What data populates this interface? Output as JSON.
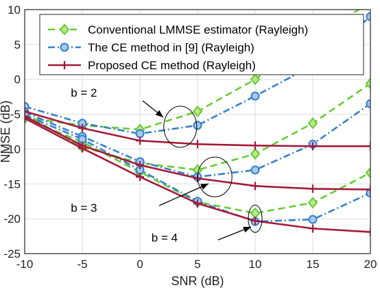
{
  "chart_data": {
    "type": "line",
    "title": "",
    "xlabel": "SNR (dB)",
    "ylabel": "NMSE (dB)",
    "xlim": [
      -10,
      20
    ],
    "ylim": [
      -25,
      10
    ],
    "xticks": [
      -10,
      -5,
      0,
      5,
      10,
      15,
      20
    ],
    "yticks": [
      -25,
      -20,
      -15,
      -10,
      -5,
      0,
      5,
      10
    ],
    "grid": true,
    "legend_position": "top",
    "x": [
      -10,
      -5,
      0,
      5,
      10,
      15,
      20
    ],
    "series": [
      {
        "name": "Conventional LMMSE estimator (Rayleigh)",
        "color": "#66cc33",
        "line_style": "dashed",
        "marker": "diamond",
        "groups": [
          {
            "label": "b = 2",
            "values": [
              -5.5,
              -6.6,
              -7.2,
              -4.6,
              0.0,
              6.0,
              11.0
            ]
          },
          {
            "label": "b = 3",
            "values": [
              -5.0,
              -9.7,
              -12.0,
              -13.0,
              -10.7,
              -6.3,
              -0.6
            ]
          },
          {
            "label": "b = 4",
            "values": [
              -5.6,
              -9.0,
              -13.3,
              -17.6,
              -19.2,
              -17.7,
              -13.4
            ]
          }
        ]
      },
      {
        "name": "The CE method in [9] (Rayleigh)",
        "color": "#3380cc",
        "line_style": "dash-dot",
        "marker": "circle",
        "groups": [
          {
            "label": "b = 2",
            "values": [
              -3.9,
              -6.3,
              -7.8,
              -6.6,
              -2.4,
              2.0,
              9.0
            ]
          },
          {
            "label": "b = 3",
            "values": [
              -4.7,
              -8.2,
              -11.8,
              -14.0,
              -13.0,
              -9.3,
              -3.5
            ]
          },
          {
            "label": "b = 4",
            "values": [
              -5.1,
              -8.6,
              -13.0,
              -17.5,
              -20.4,
              -20.1,
              -16.3
            ]
          }
        ]
      },
      {
        "name": "Proposed CE method (Rayleigh)",
        "color": "#a31a3b",
        "line_style": "solid",
        "marker": "plus",
        "groups": [
          {
            "label": "b = 2",
            "values": [
              -4.6,
              -7.0,
              -8.8,
              -9.3,
              -9.5,
              -9.6,
              -9.6
            ]
          },
          {
            "label": "b = 3",
            "values": [
              -5.3,
              -9.5,
              -12.3,
              -14.2,
              -15.3,
              -15.7,
              -15.8
            ]
          },
          {
            "label": "b = 4",
            "values": [
              -5.6,
              -9.9,
              -14.0,
              -17.8,
              -20.3,
              -21.4,
              -21.9
            ]
          }
        ]
      }
    ],
    "annotations": [
      {
        "text": "b = 2",
        "x": -6.0,
        "y": -2.5
      },
      {
        "text": "b = 3",
        "x": -6.0,
        "y": -19.0
      },
      {
        "text": "b = 4",
        "x": 1.0,
        "y": -23.3
      }
    ],
    "ellipses": [
      {
        "label": "b = 2",
        "x": 3.5,
        "y": -6.8
      },
      {
        "label": "b = 3",
        "x": 6.5,
        "y": -14.0
      },
      {
        "label": "b = 4",
        "x": 10.0,
        "y": -20.0
      }
    ]
  }
}
